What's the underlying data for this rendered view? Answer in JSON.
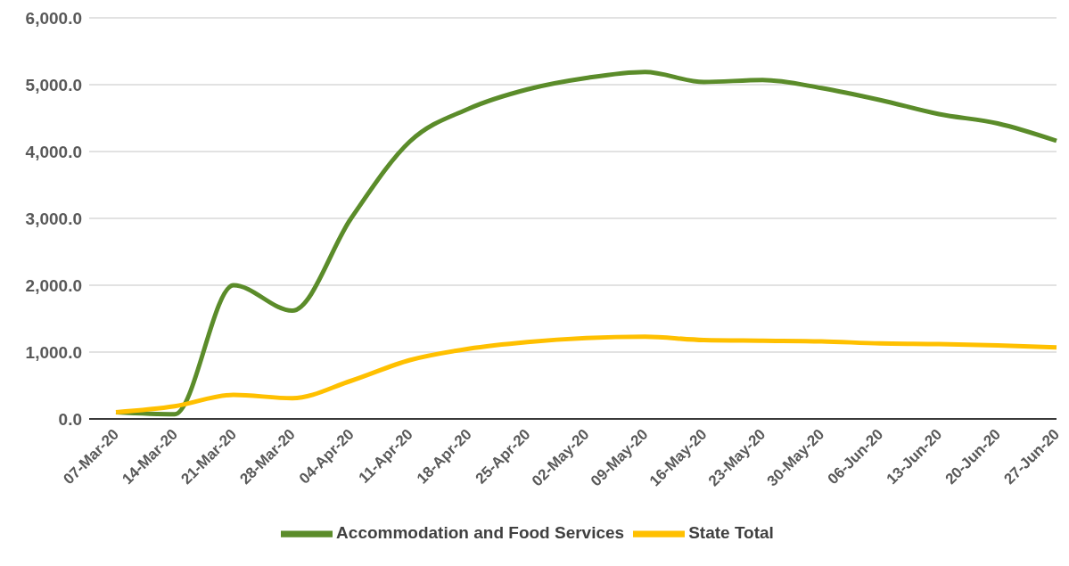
{
  "chart_data": {
    "type": "line",
    "categories": [
      "07-Mar-20",
      "14-Mar-20",
      "21-Mar-20",
      "28-Mar-20",
      "04-Apr-20",
      "11-Apr-20",
      "18-Apr-20",
      "25-Apr-20",
      "02-May-20",
      "09-May-20",
      "16-May-20",
      "23-May-20",
      "30-May-20",
      "06-Jun-20",
      "13-Jun-20",
      "20-Jun-20",
      "27-Jun-20"
    ],
    "series": [
      {
        "name": "Accommodation and Food Services",
        "color": "#5b8c2a",
        "values": [
          100,
          70,
          2000,
          1620,
          3000,
          4150,
          4640,
          4930,
          5100,
          5190,
          5040,
          5070,
          4950,
          4770,
          4560,
          4420,
          4160
        ]
      },
      {
        "name": "State Total",
        "color": "#ffc000",
        "values": [
          100,
          190,
          360,
          310,
          570,
          880,
          1050,
          1150,
          1210,
          1230,
          1180,
          1170,
          1160,
          1130,
          1120,
          1100,
          1070
        ]
      }
    ],
    "ylim": [
      0,
      6000
    ],
    "yticks": [
      {
        "value": 0,
        "label": "0.0"
      },
      {
        "value": 1000,
        "label": "1,000.0"
      },
      {
        "value": 2000,
        "label": "2,000.0"
      },
      {
        "value": 3000,
        "label": "3,000.0"
      },
      {
        "value": 4000,
        "label": "4,000.0"
      },
      {
        "value": 5000,
        "label": "5,000.0"
      },
      {
        "value": 6000,
        "label": "6,000.0"
      }
    ],
    "grid": "y",
    "legend": "bottom",
    "marker": "none",
    "line_style": "solid"
  }
}
